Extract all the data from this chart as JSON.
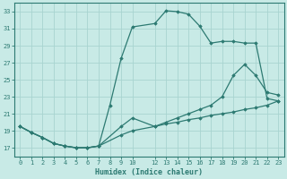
{
  "title": "",
  "xlabel": "Humidex (Indice chaleur)",
  "ylabel": "",
  "background_color": "#c8eae6",
  "grid_color": "#a8d4d0",
  "line_color": "#2d7a72",
  "xlim": [
    -0.5,
    23.5
  ],
  "ylim": [
    16,
    34
  ],
  "yticks": [
    17,
    19,
    21,
    23,
    25,
    27,
    29,
    31,
    33
  ],
  "xticks": [
    0,
    1,
    2,
    3,
    4,
    5,
    6,
    7,
    8,
    9,
    10,
    12,
    13,
    14,
    15,
    16,
    17,
    18,
    19,
    20,
    21,
    22,
    23
  ],
  "xtick_labels": [
    "0",
    "1",
    "2",
    "3",
    "4",
    "5",
    "6",
    "7",
    "8",
    "9",
    "10",
    "12",
    "13",
    "14",
    "15",
    "16",
    "17",
    "18",
    "19",
    "20",
    "21",
    "22",
    "23"
  ],
  "series": [
    {
      "x": [
        0,
        1,
        2,
        3,
        4,
        5,
        6,
        7,
        8,
        9,
        10,
        12,
        13,
        14,
        15,
        16,
        17,
        18,
        19,
        20,
        21,
        22,
        23
      ],
      "y": [
        19.5,
        18.8,
        18.2,
        17.5,
        17.2,
        17.0,
        17.0,
        17.2,
        22.0,
        27.5,
        31.2,
        31.6,
        33.1,
        33.0,
        32.7,
        31.3,
        29.3,
        29.5,
        29.5,
        29.3,
        29.3,
        22.8,
        22.5
      ]
    },
    {
      "x": [
        0,
        1,
        2,
        3,
        4,
        5,
        6,
        7,
        9,
        10,
        12,
        13,
        14,
        15,
        16,
        17,
        18,
        19,
        20,
        21,
        22,
        23
      ],
      "y": [
        19.5,
        18.8,
        18.2,
        17.5,
        17.2,
        17.0,
        17.0,
        17.2,
        19.5,
        20.5,
        19.5,
        20.0,
        20.5,
        21.0,
        21.5,
        22.0,
        23.0,
        25.5,
        26.8,
        25.5,
        23.5,
        23.2
      ]
    },
    {
      "x": [
        0,
        1,
        2,
        3,
        4,
        5,
        6,
        7,
        9,
        10,
        12,
        13,
        14,
        15,
        16,
        17,
        18,
        19,
        20,
        21,
        22,
        23
      ],
      "y": [
        19.5,
        18.8,
        18.2,
        17.5,
        17.2,
        17.0,
        17.0,
        17.2,
        18.5,
        19.0,
        19.5,
        19.8,
        20.0,
        20.3,
        20.5,
        20.8,
        21.0,
        21.2,
        21.5,
        21.7,
        22.0,
        22.5
      ]
    }
  ]
}
